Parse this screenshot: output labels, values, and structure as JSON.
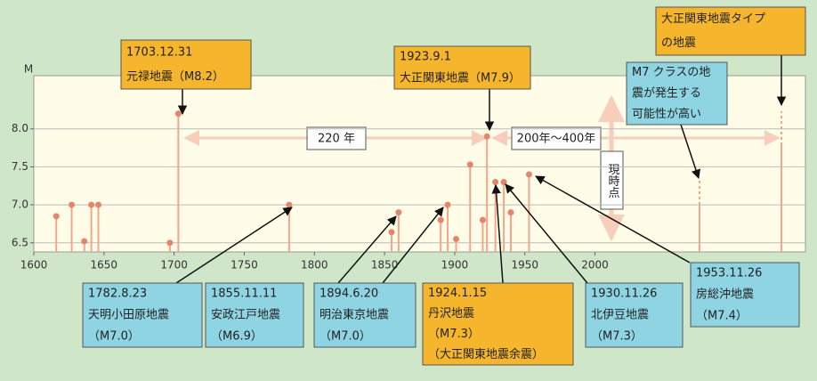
{
  "chart_data": {
    "type": "stem",
    "y_axis_label": "M",
    "xlim": [
      1600,
      2150
    ],
    "ylim": [
      6.38,
      8.7
    ],
    "xticks": [
      1600,
      1650,
      1700,
      1750,
      1800,
      1850,
      1900,
      1950,
      2000
    ],
    "yticks": [
      6.5,
      {
        "value": 7,
        "label": "7.0"
      },
      7.5,
      {
        "value": 8,
        "label": "8.0"
      }
    ],
    "grid": true,
    "color": "#f4a58a",
    "marker_color": "#e8836c",
    "x": [
      1616,
      1627,
      1636,
      1641,
      1646,
      1697,
      1703,
      1782,
      1855,
      1860,
      1890,
      1895,
      1901,
      1911,
      1920,
      1923,
      1929,
      1935,
      1940,
      1953
    ],
    "values": [
      6.85,
      7.0,
      6.52,
      7.0,
      7.0,
      6.5,
      8.2,
      7.0,
      6.64,
      6.9,
      6.8,
      7.0,
      6.55,
      7.53,
      6.8,
      7.9,
      7.3,
      7.3,
      6.9,
      7.4
    ],
    "annotations": [
      {
        "lines": [
          "1703.12.31",
          "元禄地震（M8.2）"
        ],
        "color": "#f5b52c"
      },
      {
        "lines": [
          "1923.9.1",
          "大正関東地震（M7.9）"
        ],
        "color": "#f5b52c"
      },
      {
        "lines": [
          "大正関東地震タイプ",
          "の地震"
        ],
        "color": "#f5b52c"
      },
      {
        "lines": [
          "M7 クラスの地",
          "震が発生する",
          "可能性が高い"
        ],
        "color": "#8fd4e2"
      },
      {
        "lines": [
          "1782.8.23",
          "天明小田原地震",
          "（M7.0）"
        ],
        "color": "#8fd4e2"
      },
      {
        "lines": [
          "1855.11.11",
          "安政江戸地震",
          "（M6.9）"
        ],
        "color": "#8fd4e2"
      },
      {
        "lines": [
          "1894.6.20",
          "明治東京地震",
          "（M7.0）"
        ],
        "color": "#8fd4e2"
      },
      {
        "lines": [
          "1924.1.15",
          "丹沢地震",
          "（M7.3）",
          "（大正関東地震余震）"
        ],
        "color": "#f5b52c"
      },
      {
        "lines": [
          "1930.11.26",
          "北伊豆地震",
          "（M7.3）"
        ],
        "color": "#8fd4e2"
      },
      {
        "lines": [
          "1953.11.26",
          "房総沖地震",
          "（M7.4）"
        ],
        "color": "#8fd4e2"
      }
    ],
    "spans": [
      "220 年",
      "200年～400年"
    ],
    "now_label": "現時点"
  }
}
